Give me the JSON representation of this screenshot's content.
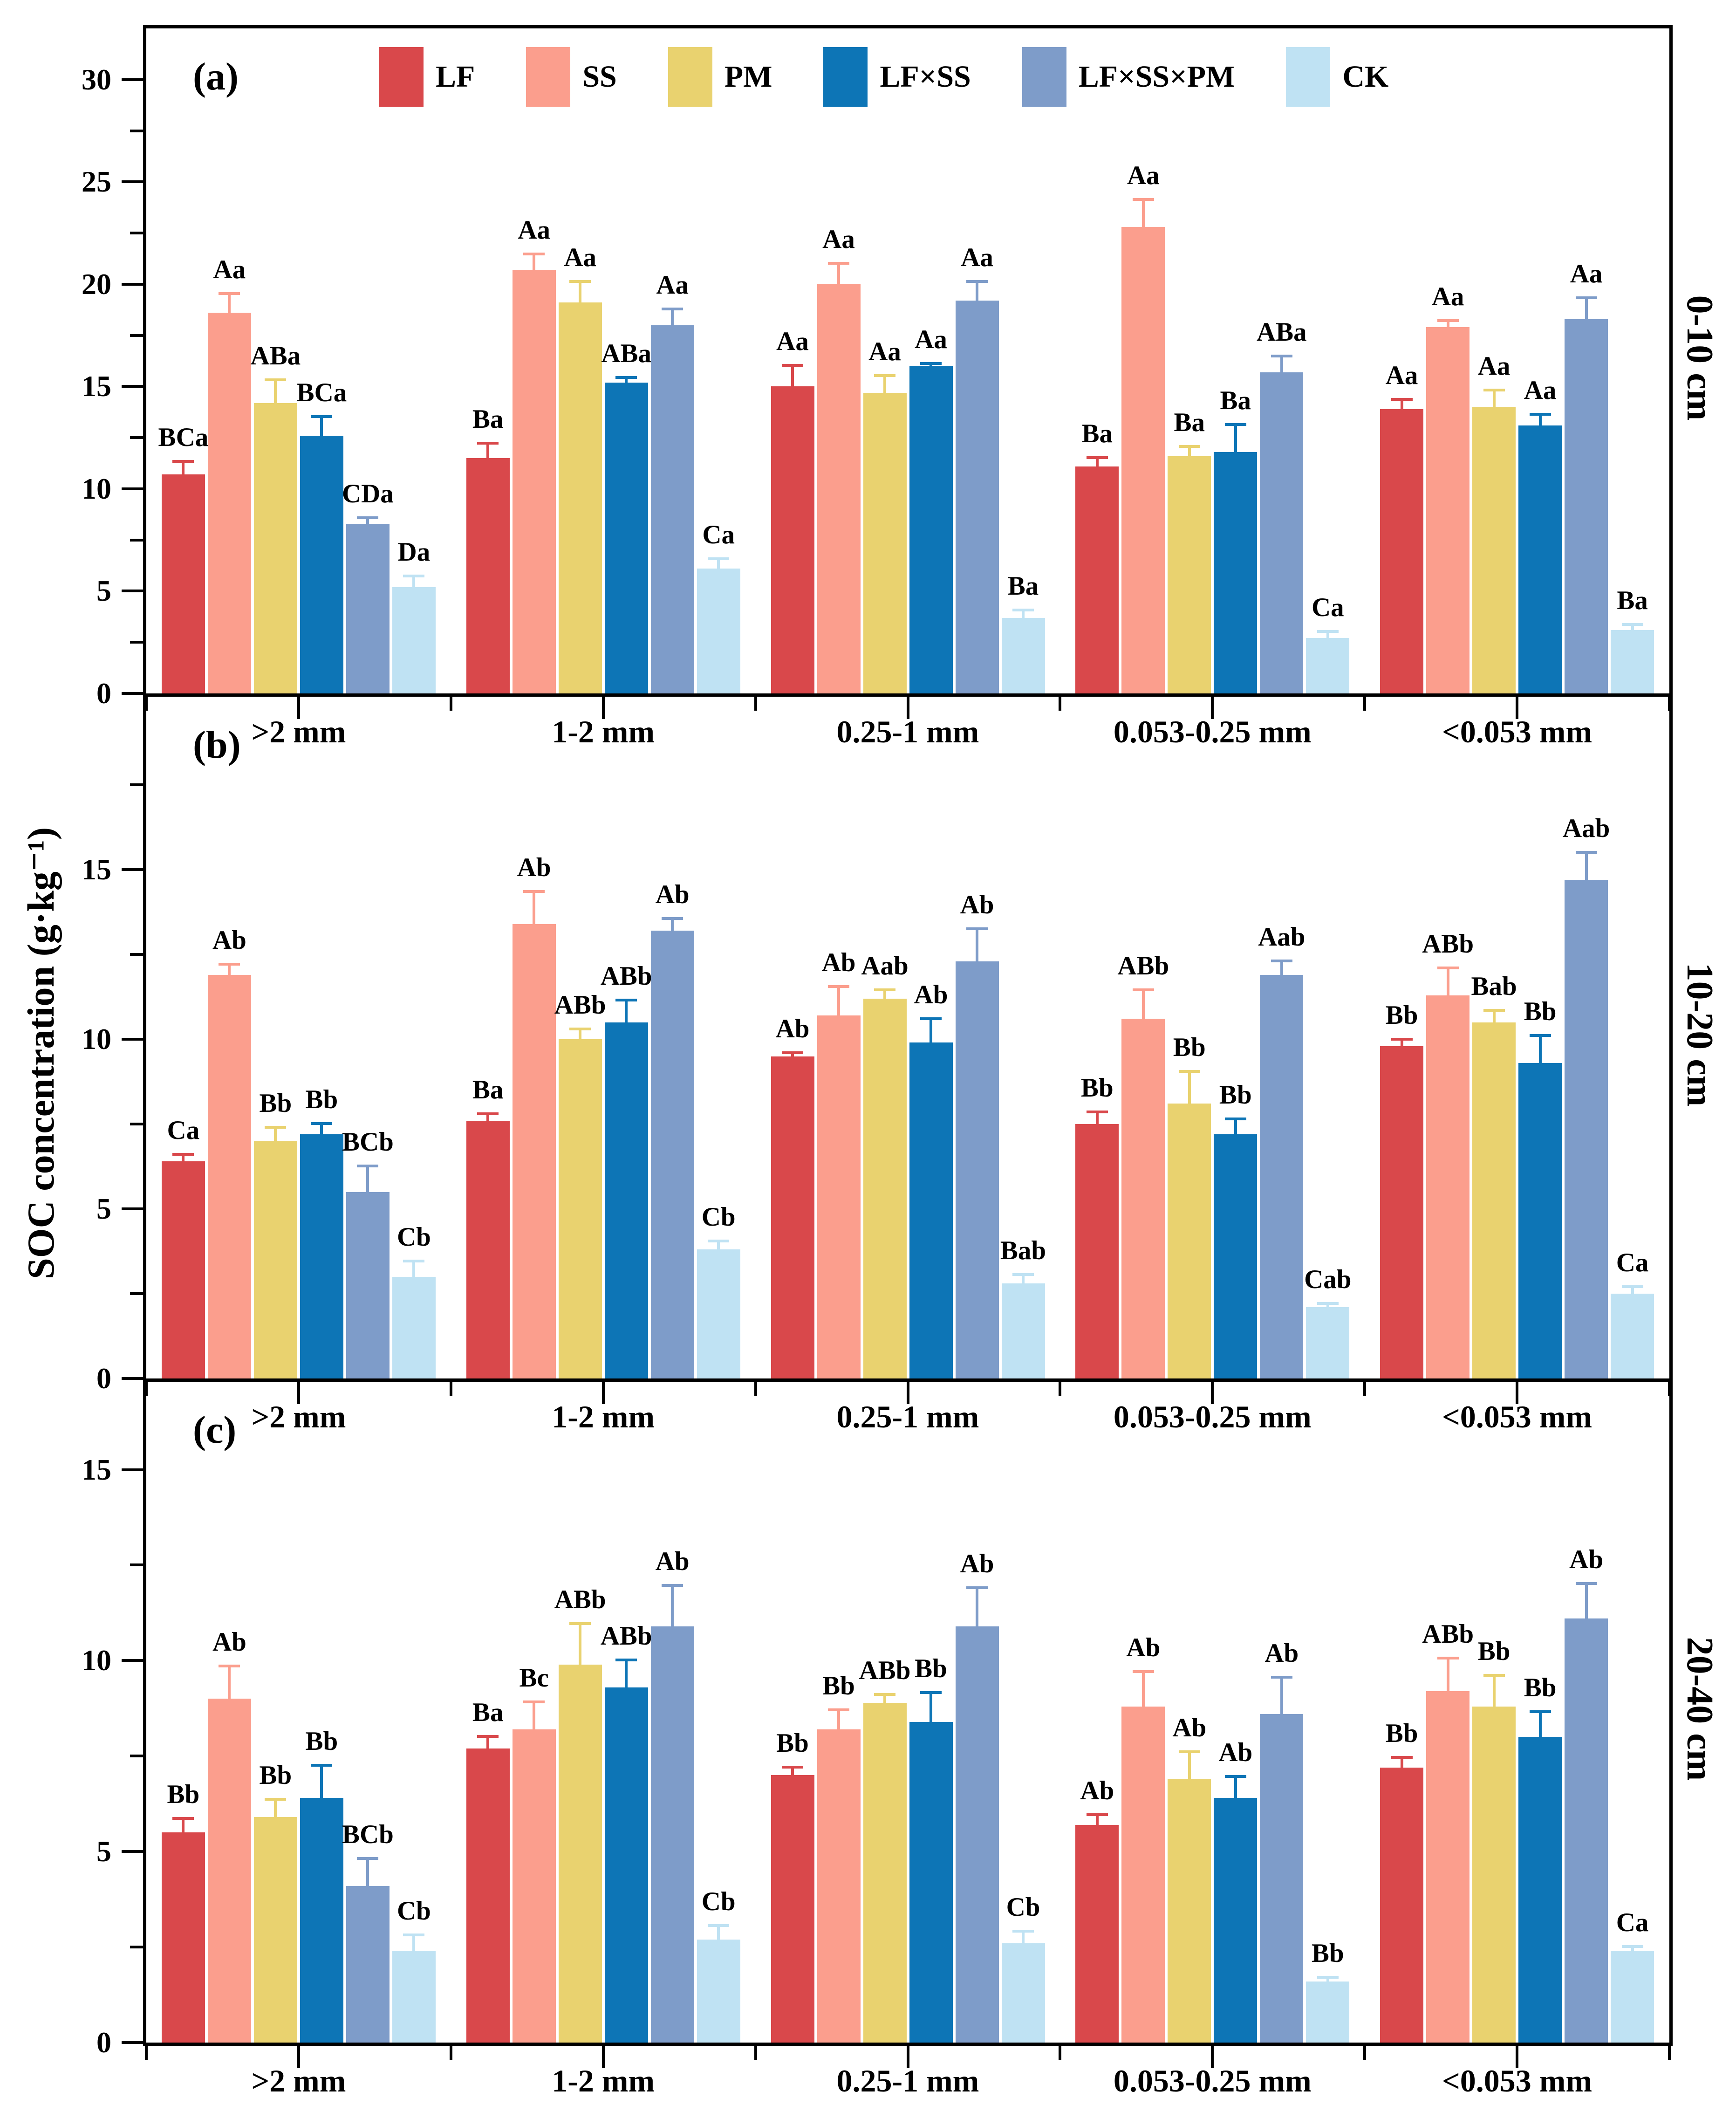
{
  "figure": {
    "y_axis_title": "SOC concentration (g·kg⁻¹)"
  },
  "legend": {
    "entries": [
      "LF",
      "SS",
      "PM",
      "LF×SS",
      "LF×SS×PM",
      "CK"
    ]
  },
  "chart_data": {
    "type": "bar",
    "title": "",
    "xlabel": "",
    "ylabel": "SOC concentration (g·kg⁻¹)",
    "grid": false,
    "legend_position": "top-inside",
    "series_names": [
      "LF",
      "SS",
      "PM",
      "LF×SS",
      "LF×SS×PM",
      "CK"
    ],
    "series_colors": [
      "#D9484B",
      "#FB9E8D",
      "#E9D26F",
      "#0D75B6",
      "#7E9CC9",
      "#BFE2F3"
    ],
    "categories": [
      ">2 mm",
      "1-2 mm",
      "0.25-1 mm",
      "0.053-0.25 mm",
      "<0.053 mm"
    ],
    "panels": [
      {
        "panel_label": "(a)",
        "depth_label": "0-10 cm",
        "ylim": [
          0,
          32.5
        ],
        "yticks": [
          0,
          5,
          10,
          15,
          20,
          25,
          30
        ],
        "yminorticks": [
          2.5,
          7.5,
          12.5,
          17.5,
          22.5,
          27.5
        ],
        "groups": [
          {
            "category": ">2 mm",
            "values": [
              10.7,
              18.6,
              14.2,
              12.6,
              8.3,
              5.2
            ],
            "errors": [
              0.7,
              1.0,
              1.2,
              1.0,
              0.35,
              0.6
            ],
            "sig_labels": [
              "BCa",
              "Aa",
              "ABa",
              "BCa",
              "CDa",
              "Da"
            ]
          },
          {
            "category": "1-2 mm",
            "values": [
              11.5,
              20.7,
              19.1,
              15.2,
              18.0,
              6.1
            ],
            "errors": [
              0.8,
              0.85,
              1.1,
              0.3,
              0.85,
              0.55
            ],
            "sig_labels": [
              "Ba",
              "Aa",
              "Aa",
              "ABa",
              "Aa",
              "Ca"
            ]
          },
          {
            "category": "0.25-1 mm",
            "values": [
              15.0,
              20.0,
              14.7,
              16.0,
              19.2,
              3.7
            ],
            "errors": [
              1.1,
              1.1,
              0.9,
              0.2,
              1.0,
              0.45
            ],
            "sig_labels": [
              "Aa",
              "Aa",
              "Aa",
              "Aa",
              "Aa",
              "Ba"
            ]
          },
          {
            "category": "0.053-0.25 mm",
            "values": [
              11.1,
              22.8,
              11.6,
              11.8,
              15.7,
              2.7
            ],
            "errors": [
              0.5,
              1.4,
              0.55,
              1.4,
              0.85,
              0.4
            ],
            "sig_labels": [
              "Ba",
              "Aa",
              "Ba",
              "Ba",
              "ABa",
              "Ca"
            ]
          },
          {
            "category": "<0.053 mm",
            "values": [
              13.9,
              17.9,
              14.0,
              13.1,
              18.3,
              3.1
            ],
            "errors": [
              0.55,
              0.4,
              0.9,
              0.6,
              1.1,
              0.35
            ],
            "sig_labels": [
              "Aa",
              "Aa",
              "Aa",
              "Aa",
              "Aa",
              "Ba"
            ]
          }
        ]
      },
      {
        "panel_label": "(b)",
        "depth_label": "10-20 cm",
        "ylim": [
          0,
          20.1
        ],
        "yticks": [
          0,
          5,
          10,
          15
        ],
        "yminorticks": [
          2.5,
          7.5,
          12.5,
          17.5
        ],
        "groups": [
          {
            "category": ">2 mm",
            "values": [
              6.4,
              11.9,
              7.0,
              7.2,
              5.5,
              3.0
            ],
            "errors": [
              0.25,
              0.35,
              0.45,
              0.35,
              0.8,
              0.5
            ],
            "sig_labels": [
              "Ca",
              "Ab",
              "Bb",
              "Bb",
              "BCb",
              "Cb"
            ]
          },
          {
            "category": "1-2 mm",
            "values": [
              7.6,
              13.4,
              10.0,
              10.5,
              13.2,
              3.8
            ],
            "errors": [
              0.25,
              1.0,
              0.35,
              0.7,
              0.4,
              0.3
            ],
            "sig_labels": [
              "Ba",
              "Ab",
              "ABb",
              "ABb",
              "Ab",
              "Cb"
            ]
          },
          {
            "category": "0.25-1 mm",
            "values": [
              9.5,
              10.7,
              11.2,
              9.9,
              12.3,
              2.8
            ],
            "errors": [
              0.15,
              0.9,
              0.3,
              0.75,
              1.0,
              0.3
            ],
            "sig_labels": [
              "Ab",
              "Ab",
              "Aab",
              "Ab",
              "Ab",
              "Bab"
            ]
          },
          {
            "category": "0.053-0.25 mm",
            "values": [
              7.5,
              10.6,
              8.1,
              7.2,
              11.9,
              2.1
            ],
            "errors": [
              0.4,
              0.9,
              1.0,
              0.5,
              0.45,
              0.15
            ],
            "sig_labels": [
              "Bb",
              "ABb",
              "Bb",
              "Bb",
              "Aab",
              "Cab"
            ]
          },
          {
            "category": "<0.053 mm",
            "values": [
              9.8,
              11.3,
              10.5,
              9.3,
              14.7,
              2.5
            ],
            "errors": [
              0.25,
              0.85,
              0.4,
              0.85,
              0.85,
              0.25
            ],
            "sig_labels": [
              "Bb",
              "ABb",
              "Bab",
              "Bb",
              "Aab",
              "Ca"
            ]
          }
        ]
      },
      {
        "panel_label": "(c)",
        "depth_label": "20-40 cm",
        "ylim": [
          0,
          17.3
        ],
        "yticks": [
          0,
          5,
          10,
          15
        ],
        "yminorticks": [
          2.5,
          7.5,
          12.5
        ],
        "groups": [
          {
            "category": ">2 mm",
            "values": [
              5.5,
              9.0,
              5.9,
              6.4,
              4.1,
              2.4
            ],
            "errors": [
              0.4,
              0.9,
              0.5,
              0.9,
              0.75,
              0.45
            ],
            "sig_labels": [
              "Bb",
              "Ab",
              "Bb",
              "Bb",
              "BCb",
              "Cb"
            ]
          },
          {
            "category": "1-2 mm",
            "values": [
              7.7,
              8.2,
              9.9,
              9.3,
              10.9,
              2.7
            ],
            "errors": [
              0.35,
              0.75,
              1.1,
              0.75,
              1.1,
              0.4
            ],
            "sig_labels": [
              "Ba",
              "Bc",
              "ABb",
              "ABb",
              "Ab",
              "Cb"
            ]
          },
          {
            "category": "0.25-1 mm",
            "values": [
              7.0,
              8.2,
              8.9,
              8.4,
              10.9,
              2.6
            ],
            "errors": [
              0.25,
              0.55,
              0.25,
              0.8,
              1.05,
              0.35
            ],
            "sig_labels": [
              "Bb",
              "Bb",
              "ABb",
              "Bb",
              "Ab",
              "Cb"
            ]
          },
          {
            "category": "0.053-0.25 mm",
            "values": [
              5.7,
              8.8,
              6.9,
              6.4,
              8.6,
              1.6
            ],
            "errors": [
              0.3,
              0.95,
              0.75,
              0.6,
              1.0,
              0.15
            ],
            "sig_labels": [
              "Ab",
              "Ab",
              "Ab",
              "Ab",
              "Ab",
              "Bb"
            ]
          },
          {
            "category": "<0.053 mm",
            "values": [
              7.2,
              9.2,
              8.8,
              8.0,
              11.1,
              2.4
            ],
            "errors": [
              0.3,
              0.9,
              0.85,
              0.7,
              0.95,
              0.15
            ],
            "sig_labels": [
              "Bb",
              "ABb",
              "Bb",
              "Bb",
              "Ab",
              "Ca"
            ]
          }
        ]
      }
    ]
  }
}
